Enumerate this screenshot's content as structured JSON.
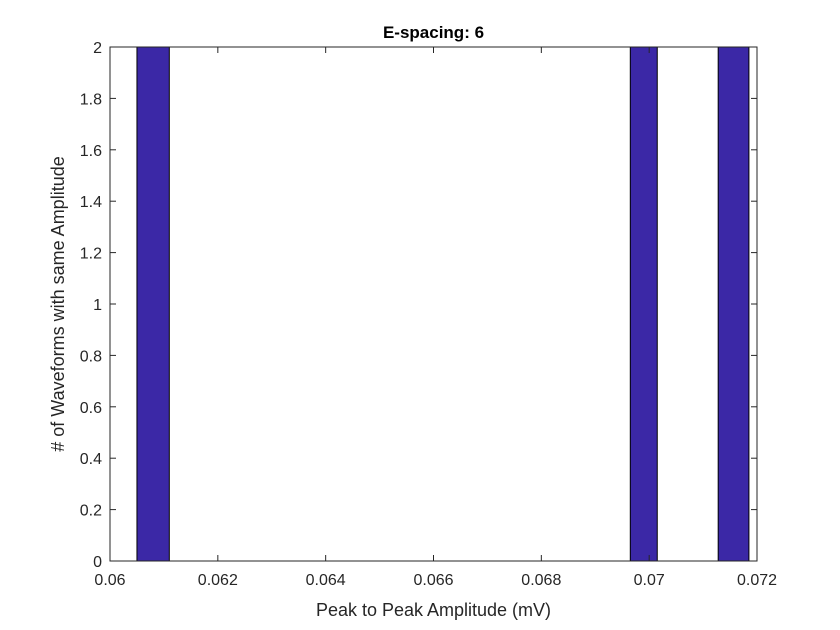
{
  "chart_data": {
    "type": "bar",
    "title": "E-spacing: 6",
    "xlabel": "Peak to Peak Amplitude (mV)",
    "ylabel": "# of Waveforms with same Amplitude",
    "xlim": [
      0.06,
      0.072
    ],
    "ylim": [
      0,
      2
    ],
    "xticks": [
      0.06,
      0.062,
      0.064,
      0.066,
      0.068,
      0.07,
      0.072
    ],
    "xtick_labels": [
      "0.06",
      "0.062",
      "0.064",
      "0.066",
      "0.068",
      "0.07",
      "0.072"
    ],
    "yticks": [
      0,
      0.2,
      0.4,
      0.6,
      0.8,
      1,
      1.2,
      1.4,
      1.6,
      1.8,
      2
    ],
    "ytick_labels": [
      "0",
      "0.2",
      "0.4",
      "0.6",
      "0.8",
      "1",
      "1.2",
      "1.4",
      "1.6",
      "1.8",
      "2"
    ],
    "bars": [
      {
        "x_start": 0.0605,
        "x_end": 0.0611,
        "value": 2
      },
      {
        "x_start": 0.06965,
        "x_end": 0.07015,
        "value": 2
      },
      {
        "x_start": 0.07128,
        "x_end": 0.07185,
        "value": 2
      }
    ],
    "grid": false,
    "bar_color": "#3b28a6",
    "bar_edge_color": "#000000"
  }
}
